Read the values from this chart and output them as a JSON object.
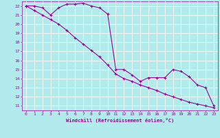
{
  "xlabel": "Windchill (Refroidissement éolien,°C)",
  "background_color": "#b2ebeb",
  "line_color": "#990099",
  "grid_color": "#ffffff",
  "xlim": [
    -0.5,
    23.5
  ],
  "ylim": [
    10.5,
    22.5
  ],
  "yticks": [
    11,
    12,
    13,
    14,
    15,
    16,
    17,
    18,
    19,
    20,
    21,
    22
  ],
  "xticks": [
    0,
    1,
    2,
    3,
    4,
    5,
    6,
    7,
    8,
    9,
    10,
    11,
    12,
    13,
    14,
    15,
    16,
    17,
    18,
    19,
    20,
    21,
    22,
    23
  ],
  "line1_x": [
    0,
    1,
    2,
    3,
    4,
    5,
    6,
    7,
    8,
    9,
    10,
    11,
    12,
    13,
    14,
    15,
    16,
    17,
    18,
    19,
    20,
    21,
    22,
    23
  ],
  "line1_y": [
    22.0,
    22.0,
    21.8,
    21.0,
    21.8,
    22.2,
    22.2,
    22.3,
    22.0,
    21.8,
    21.1,
    15.0,
    15.0,
    14.4,
    13.7,
    14.1,
    14.1,
    14.1,
    15.0,
    14.8,
    14.2,
    13.3,
    13.0,
    11.0
  ],
  "line2_x": [
    0,
    1,
    2,
    3,
    4,
    5,
    6,
    7,
    8,
    9,
    10,
    11,
    12,
    13,
    14,
    15,
    16,
    17,
    18,
    19,
    20,
    21,
    22,
    23
  ],
  "line2_y": [
    22.0,
    21.5,
    21.0,
    20.5,
    20.0,
    19.3,
    18.5,
    17.8,
    17.1,
    16.4,
    15.5,
    14.5,
    14.0,
    13.7,
    13.3,
    13.0,
    12.7,
    12.3,
    12.0,
    11.7,
    11.4,
    11.2,
    11.0,
    10.8
  ],
  "marker": "+",
  "markersize": 3,
  "linewidth": 0.8
}
